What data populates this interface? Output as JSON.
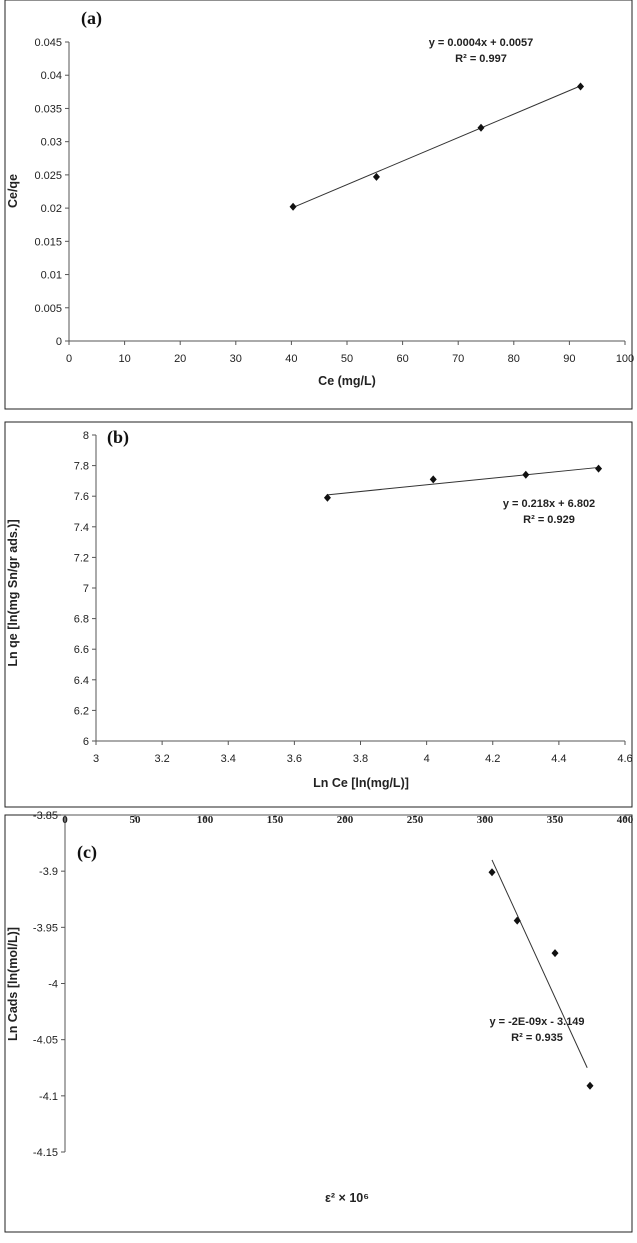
{
  "chart_data": [
    {
      "type": "scatter",
      "panel_label": "(a)",
      "xlabel": "Ce (mg/L)",
      "ylabel": "Ce/qe",
      "xlim": [
        0,
        100
      ],
      "ylim": [
        0,
        0.045
      ],
      "xticks": [
        "0",
        "10",
        "20",
        "30",
        "40",
        "50",
        "60",
        "70",
        "80",
        "90",
        "100"
      ],
      "yticks": [
        "0",
        "0.005",
        "0.01",
        "0.015",
        "0.02",
        "0.025",
        "0.03",
        "0.035",
        "0.04",
        "0.045"
      ],
      "grid": false,
      "series": [
        {
          "x": [
            40.3,
            55.3,
            74.1,
            92.0
          ],
          "y": [
            0.0202,
            0.0247,
            0.0321,
            0.0383
          ]
        }
      ],
      "trendline": {
        "x": [
          40.3,
          92.0
        ],
        "y": [
          0.0201,
          0.0384
        ]
      },
      "equation": "y = 0.0004x + 0.0057",
      "r2": "R² = 0.997"
    },
    {
      "type": "scatter",
      "panel_label": "(b)",
      "xlabel": "Ln Ce [ln(mg/L)]",
      "ylabel": "Ln qe [ln(mg Sn/gr ads.)]",
      "xlim": [
        3,
        4.6
      ],
      "ylim": [
        6,
        8
      ],
      "xticks": [
        "3",
        "3.2",
        "3.4",
        "3.6",
        "3.8",
        "4",
        "4.2",
        "4.4",
        "4.6"
      ],
      "yticks": [
        "6",
        "6.2",
        "6.4",
        "6.6",
        "6.8",
        "7",
        "7.2",
        "7.4",
        "7.6",
        "7.8",
        "8"
      ],
      "grid": false,
      "series": [
        {
          "x": [
            3.7,
            4.02,
            4.3,
            4.52
          ],
          "y": [
            7.59,
            7.71,
            7.74,
            7.78
          ]
        }
      ],
      "trendline": {
        "x": [
          3.7,
          4.52
        ],
        "y": [
          7.609,
          7.788
        ]
      },
      "equation": "y = 0.218x + 6.802",
      "r2": "R² = 0.929"
    },
    {
      "type": "scatter",
      "panel_label": "(c)",
      "xlabel": "ε² × 10⁶",
      "ylabel": "Ln Cads [ln(mol/L)]",
      "xlim": [
        0,
        400
      ],
      "ylim": [
        -4.15,
        -3.85
      ],
      "xticks": [
        "0",
        "50",
        "100",
        "150",
        "200",
        "250",
        "300",
        "350",
        "400"
      ],
      "yticks": [
        "-3.85",
        "-3.9",
        "-3.95",
        "-4",
        "-4.05",
        "-4.1",
        "-4.15"
      ],
      "x_axis_position": "top",
      "grid": false,
      "series": [
        {
          "x": [
            305,
            323,
            350,
            375
          ],
          "y": [
            -3.901,
            -3.944,
            -3.973,
            -4.091
          ]
        }
      ],
      "trendline": {
        "x": [
          305,
          373
        ],
        "y": [
          -3.89,
          -4.075
        ]
      },
      "equation": "y = -2E-09x - 3.149",
      "r2": "R² = 0.935"
    }
  ]
}
